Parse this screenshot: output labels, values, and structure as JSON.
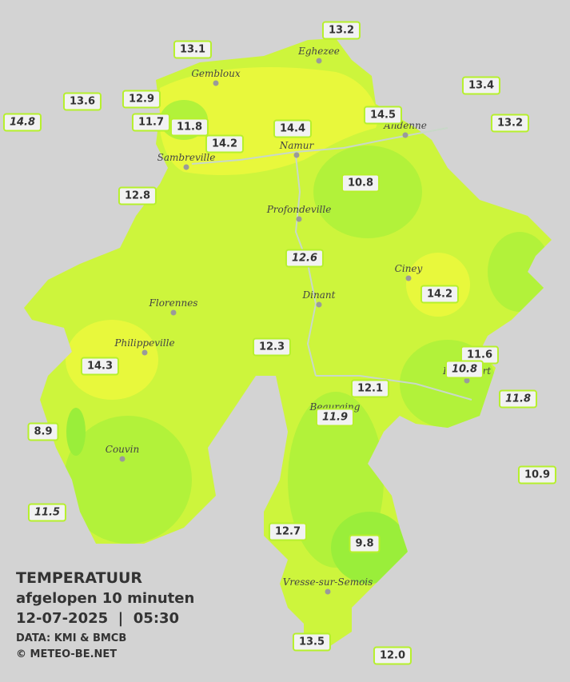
{
  "title": "TEMPERATUUR",
  "subtitle": "afgelopen 10 minuten",
  "datetime": "12-07-2025  |  05:30",
  "source": "DATA: KMI & BMCB",
  "copyright": "© METEO-BE.NET",
  "towns": [
    "Eghezee",
    "Gembloux",
    "Andenne",
    "Namur",
    "Sambreville",
    "Profondeville",
    "Ciney",
    "Dinant",
    "Florennes",
    "Philippeville",
    "Rochefort",
    "Beauraing",
    "Couvin",
    "Vresse-sur-Semois"
  ],
  "stations": [
    {
      "label": "13.2",
      "italic": false
    },
    {
      "label": "13.1",
      "italic": false
    },
    {
      "label": "13.4",
      "italic": false
    },
    {
      "label": "13.6",
      "italic": false
    },
    {
      "label": "12.9",
      "italic": false
    },
    {
      "label": "14.8",
      "italic": true
    },
    {
      "label": "11.7",
      "italic": false
    },
    {
      "label": "11.8",
      "italic": false
    },
    {
      "label": "14.5",
      "italic": false
    },
    {
      "label": "13.2",
      "italic": false
    },
    {
      "label": "14.4",
      "italic": false
    },
    {
      "label": "14.2",
      "italic": false
    },
    {
      "label": "12.8",
      "italic": false
    },
    {
      "label": "10.8",
      "italic": false
    },
    {
      "label": "12.6",
      "italic": true
    },
    {
      "label": "14.2",
      "italic": false
    },
    {
      "label": "12.3",
      "italic": false
    },
    {
      "label": "11.6",
      "italic": false
    },
    {
      "label": "10.8",
      "italic": true
    },
    {
      "label": "14.3",
      "italic": false
    },
    {
      "label": "12.1",
      "italic": false
    },
    {
      "label": "11.8",
      "italic": true
    },
    {
      "label": "11.9",
      "italic": true
    },
    {
      "label": "8.9",
      "italic": false
    },
    {
      "label": "10.9",
      "italic": false
    },
    {
      "label": "11.5",
      "italic": true
    },
    {
      "label": "12.7",
      "italic": false
    },
    {
      "label": "9.8",
      "italic": false
    },
    {
      "label": "13.5",
      "italic": false
    },
    {
      "label": "12.0",
      "italic": false
    }
  ]
}
